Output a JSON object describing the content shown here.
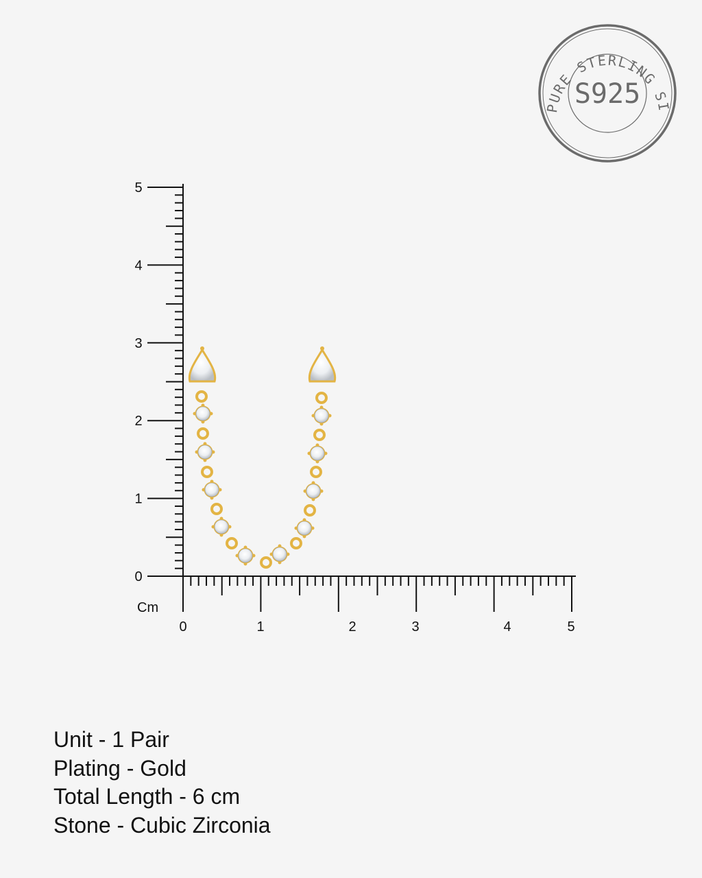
{
  "stamp": {
    "ring_text": "PURE STERLING SILVER",
    "center_text": "S925",
    "color": "#6b6b6b"
  },
  "ruler": {
    "unit": "Cm",
    "vertical_labels": [
      "0",
      "1",
      "2",
      "3",
      "4",
      "5"
    ],
    "horizontal_labels": [
      "0",
      "1",
      "2",
      "3",
      "4",
      "5"
    ]
  },
  "product": {
    "metal_color": "#e3b444",
    "stone_color": "#ffffff"
  },
  "specs": [
    "Unit - 1 Pair",
    "Plating - Gold",
    "Total Length - 6 cm",
    "Stone - Cubic Zirconia"
  ]
}
